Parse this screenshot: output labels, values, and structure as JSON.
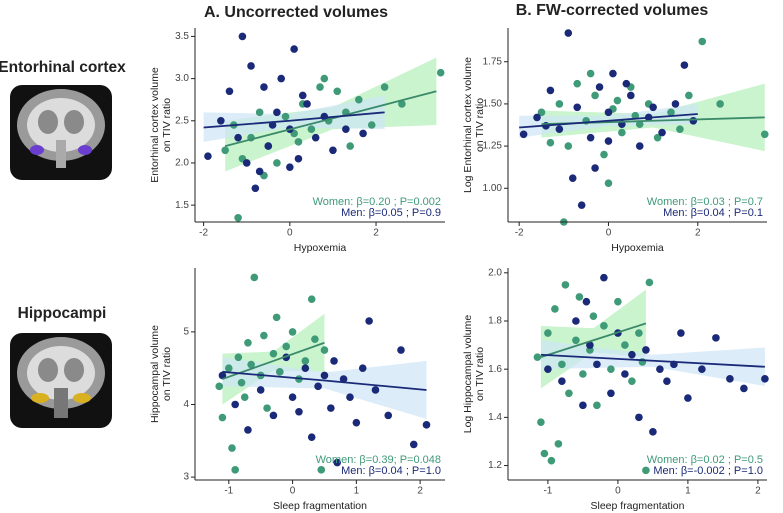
{
  "columns": [
    "A. Uncorrected volumes",
    "B. FW-corrected volumes"
  ],
  "rows": [
    "Entorhinal cortex",
    "Hippocampi"
  ],
  "chart_data": [
    {
      "type": "scatter",
      "xlabel": "Hypoxemia",
      "ylabel": [
        "Entorhinal cortex volume",
        "on TIV ratio"
      ],
      "xlim": [
        -2.2,
        3.6
      ],
      "ylim": [
        1.3,
        3.6
      ],
      "xticks": [
        -2,
        0,
        2
      ],
      "yticks": [
        1.5,
        {
          "value": 2,
          "label": "2.0"
        },
        2.5,
        {
          "value": 3,
          "label": "3.0"
        },
        3.5
      ],
      "series": [
        {
          "color": "#3f9a78",
          "annotation": "Women: β=0.20 ; P=0.002",
          "x": [
            -1.5,
            -1.3,
            -1.1,
            -0.9,
            -0.7,
            -0.5,
            -0.3,
            -0.1,
            0.1,
            0.3,
            0.5,
            0.7,
            0.9,
            1.1,
            1.3,
            1.6,
            1.9,
            2.2,
            2.6,
            3.5,
            -0.6,
            0.2,
            0.8,
            -1.2,
            1.4
          ],
          "values": [
            2.15,
            2.45,
            2.05,
            2.3,
            2.6,
            2.2,
            2.0,
            2.55,
            2.35,
            2.7,
            2.4,
            2.9,
            2.5,
            2.85,
            2.6,
            2.75,
            2.45,
            2.9,
            2.7,
            3.07,
            1.85,
            2.25,
            3.0,
            1.35,
            2.2
          ],
          "fit": {
            "color": "#3a8a6a",
            "band_color": "#b4efb8",
            "x": [
              -1.5,
              1.0,
              3.4
            ],
            "y": [
              2.2,
              2.53,
              2.85
            ],
            "lower": [
              1.9,
              2.4,
              2.45
            ],
            "upper": [
              2.5,
              2.66,
              3.25
            ]
          }
        },
        {
          "color": "#1b2a78",
          "annotation": "Men: β=0.05 ; P=0.9",
          "x": [
            -1.9,
            -1.6,
            -1.4,
            -1.2,
            -1.0,
            -0.9,
            -0.8,
            -0.6,
            -0.5,
            -0.3,
            -0.2,
            0.0,
            0.1,
            0.2,
            0.4,
            0.6,
            0.8,
            1.0,
            1.3,
            1.7,
            -1.1,
            -0.7,
            0.3,
            -0.4,
            0.0
          ],
          "values": [
            2.08,
            2.5,
            2.85,
            2.3,
            2.0,
            3.15,
            1.7,
            2.9,
            2.2,
            2.6,
            3.0,
            2.4,
            3.35,
            2.05,
            2.7,
            2.3,
            2.55,
            2.15,
            2.4,
            2.35,
            3.5,
            1.9,
            2.8,
            2.45,
            1.95
          ],
          "fit": {
            "color": "#1b2a78",
            "band_color": "#cde5f7",
            "x": [
              -2,
              0,
              2.2
            ],
            "y": [
              2.42,
              2.5,
              2.6
            ],
            "lower": [
              2.25,
              2.42,
              2.4
            ],
            "upper": [
              2.6,
              2.58,
              2.8
            ]
          }
        }
      ]
    },
    {
      "type": "scatter",
      "xlabel": "Hypoxemia",
      "ylabel": [
        "Log Entorhinal cortex volume",
        "on TIV ratio"
      ],
      "xlim": [
        -2.25,
        3.55
      ],
      "ylim": [
        0.8,
        1.95
      ],
      "xticks": [
        -2,
        0,
        2
      ],
      "yticks": [
        {
          "value": 1,
          "label": "1.00"
        },
        1.25,
        {
          "value": 1.5,
          "label": "1.50"
        },
        1.75
      ],
      "series": [
        {
          "color": "#3f9a78",
          "annotation": "Women: β=0.03 ; P=0.7",
          "x": [
            -1.5,
            -1.3,
            -1.1,
            -0.9,
            -0.7,
            -0.5,
            -0.3,
            -0.1,
            0.1,
            0.3,
            0.5,
            0.7,
            0.9,
            1.1,
            1.4,
            1.8,
            2.1,
            2.5,
            3.5,
            -1.0,
            0.0,
            0.6,
            1.6,
            -0.4,
            0.2
          ],
          "values": [
            1.45,
            1.27,
            1.5,
            1.25,
            1.62,
            1.4,
            1.55,
            1.2,
            1.47,
            1.33,
            1.6,
            1.38,
            1.5,
            1.3,
            1.45,
            1.55,
            1.87,
            1.5,
            1.32,
            0.8,
            1.03,
            1.43,
            1.35,
            1.68,
            1.52
          ],
          "fit": {
            "color": "#3a8a6a",
            "band_color": "#b4efb8",
            "x": [
              -1.5,
              1,
              3.5
            ],
            "y": [
              1.38,
              1.4,
              1.42
            ],
            "lower": [
              1.3,
              1.36,
              1.22
            ],
            "upper": [
              1.46,
              1.44,
              1.62
            ]
          }
        },
        {
          "color": "#1b2a78",
          "annotation": "Men: β=0.04 ; P=0.1",
          "x": [
            -1.9,
            -1.6,
            -1.3,
            -1.1,
            -0.9,
            -0.7,
            -0.6,
            -0.4,
            -0.2,
            0.0,
            0.1,
            0.3,
            0.5,
            0.7,
            0.9,
            1.2,
            1.5,
            1.7,
            1.9,
            -0.8,
            -0.3,
            0.4,
            0.0,
            -1.4,
            1.0
          ],
          "values": [
            1.32,
            1.42,
            1.58,
            1.35,
            1.92,
            1.48,
            0.9,
            1.3,
            1.6,
            1.45,
            1.68,
            1.38,
            1.55,
            1.25,
            1.42,
            1.33,
            1.5,
            1.73,
            1.4,
            1.06,
            1.12,
            1.62,
            1.28,
            1.37,
            1.48
          ],
          "fit": {
            "color": "#1b2a78",
            "band_color": "#cde5f7",
            "x": [
              -2,
              0,
              2
            ],
            "y": [
              1.36,
              1.4,
              1.44
            ],
            "lower": [
              1.3,
              1.37,
              1.38
            ],
            "upper": [
              1.43,
              1.43,
              1.5
            ]
          }
        }
      ]
    },
    {
      "type": "scatter",
      "xlabel": "Sleep fragmentation",
      "ylabel": [
        "Hippocampal volume",
        "on TIV ratio"
      ],
      "xlim": [
        -1.53,
        2.39
      ],
      "ylim": [
        2.96,
        5.88
      ],
      "xticks": [
        -1,
        0,
        1,
        2
      ],
      "yticks": [
        3,
        4,
        5
      ],
      "series": [
        {
          "color": "#3f9a78",
          "annotation": "Women: β=0.39; P=0.048",
          "x": [
            -1.15,
            -1.1,
            -1.0,
            -0.95,
            -0.9,
            -0.85,
            -0.8,
            -0.7,
            -0.65,
            -0.6,
            -0.5,
            -0.45,
            -0.4,
            -0.3,
            -0.25,
            -0.2,
            -0.1,
            0.0,
            0.1,
            0.2,
            0.3,
            0.35,
            0.45,
            -0.75,
            0.5
          ],
          "values": [
            4.25,
            3.82,
            4.5,
            3.4,
            3.1,
            4.65,
            4.3,
            4.85,
            4.55,
            5.75,
            4.4,
            4.95,
            3.95,
            4.7,
            5.2,
            4.45,
            4.8,
            5.0,
            4.35,
            4.6,
            5.45,
            4.9,
            3.1,
            4.1,
            4.75
          ],
          "fit": {
            "color": "#3a8a6a",
            "band_color": "#b4efb8",
            "x": [
              -1.1,
              -0.3,
              0.5
            ],
            "y": [
              4.35,
              4.6,
              4.85
            ],
            "lower": [
              4.0,
              4.47,
              4.45
            ],
            "upper": [
              4.7,
              4.73,
              5.25
            ]
          }
        },
        {
          "color": "#1b2a78",
          "annotation": "Men: β=0.04 ; P=1.0",
          "x": [
            -1.1,
            -0.9,
            -0.7,
            -0.5,
            -0.3,
            -0.1,
            0.0,
            0.1,
            0.2,
            0.3,
            0.4,
            0.5,
            0.6,
            0.7,
            0.8,
            0.9,
            1.0,
            1.1,
            1.2,
            1.3,
            1.5,
            1.7,
            1.9,
            2.1,
            0.65
          ],
          "values": [
            4.4,
            4.0,
            3.65,
            4.2,
            3.85,
            4.65,
            4.1,
            3.9,
            4.5,
            3.55,
            4.25,
            4.4,
            3.95,
            3.2,
            4.35,
            4.1,
            3.75,
            4.5,
            5.15,
            4.2,
            3.85,
            4.75,
            3.45,
            3.72,
            4.6
          ],
          "fit": {
            "color": "#1b2a78",
            "band_color": "#cde5f7",
            "x": [
              -1.1,
              0.5,
              2.1
            ],
            "y": [
              4.45,
              4.33,
              4.2
            ],
            "lower": [
              4.25,
              4.22,
              3.8
            ],
            "upper": [
              4.65,
              4.44,
              4.6
            ]
          }
        }
      ]
    },
    {
      "type": "scatter",
      "xlabel": "Sleep fragmentation",
      "ylabel": [
        "Log Hippocampal volume",
        "on TIV ratio"
      ],
      "xlim": [
        -1.57,
        2.13
      ],
      "ylim": [
        1.14,
        2.02
      ],
      "xticks": [
        -1,
        0,
        1,
        2
      ],
      "yticks": [
        1.2,
        1.4,
        1.6,
        1.8,
        {
          "value": 2,
          "label": "2.0"
        }
      ],
      "series": [
        {
          "color": "#3f9a78",
          "annotation": "Women: β=0.02 ; P=0.5",
          "x": [
            -1.15,
            -1.1,
            -1.05,
            -1.0,
            -0.95,
            -0.9,
            -0.8,
            -0.75,
            -0.7,
            -0.6,
            -0.55,
            -0.5,
            -0.4,
            -0.35,
            -0.3,
            -0.2,
            -0.1,
            0.0,
            0.1,
            0.2,
            0.3,
            0.4,
            0.45,
            -0.85,
            0.35
          ],
          "values": [
            1.65,
            1.38,
            1.25,
            1.75,
            1.22,
            1.85,
            1.62,
            1.95,
            1.5,
            1.72,
            1.9,
            1.58,
            1.68,
            1.82,
            1.45,
            1.78,
            1.6,
            1.88,
            1.7,
            1.55,
            1.75,
            1.18,
            1.96,
            1.29,
            1.63
          ],
          "fit": {
            "color": "#3a8a6a",
            "band_color": "#b4efb8",
            "x": [
              -1.1,
              -0.35,
              0.4
            ],
            "y": [
              1.65,
              1.72,
              1.79
            ],
            "lower": [
              1.52,
              1.67,
              1.65
            ],
            "upper": [
              1.78,
              1.77,
              1.93
            ]
          }
        },
        {
          "color": "#1b2a78",
          "annotation": "Men: β=-0.002 ; P=1.0",
          "x": [
            -1.0,
            -0.8,
            -0.6,
            -0.5,
            -0.4,
            -0.3,
            -0.2,
            -0.1,
            0.0,
            0.1,
            0.2,
            0.3,
            0.4,
            0.5,
            0.6,
            0.7,
            0.8,
            0.9,
            1.0,
            1.2,
            1.4,
            1.6,
            1.8,
            2.1,
            -0.45
          ],
          "values": [
            1.6,
            1.55,
            1.8,
            1.45,
            1.7,
            1.62,
            1.98,
            1.5,
            1.75,
            1.58,
            1.66,
            1.4,
            1.68,
            1.34,
            1.6,
            1.55,
            1.62,
            1.75,
            1.48,
            1.6,
            1.73,
            1.56,
            1.52,
            1.56,
            1.88
          ],
          "fit": {
            "color": "#1b2a78",
            "band_color": "#cde5f7",
            "x": [
              -1.1,
              0.5,
              2.1
            ],
            "y": [
              1.66,
              1.635,
              1.61
            ],
            "lower": [
              1.6,
              1.61,
              1.53
            ],
            "upper": [
              1.72,
              1.66,
              1.69
            ]
          }
        }
      ]
    }
  ]
}
